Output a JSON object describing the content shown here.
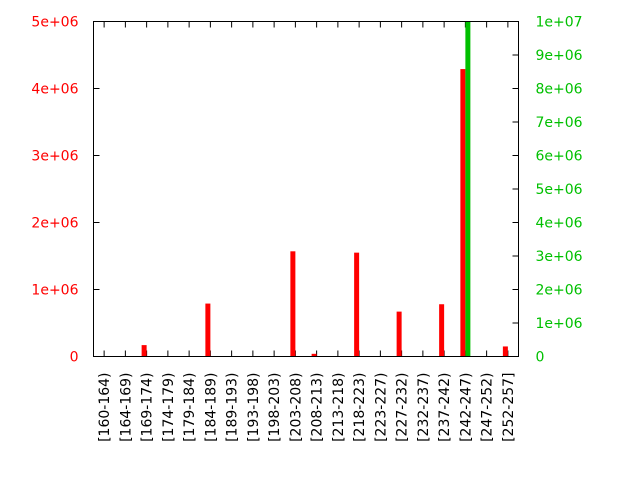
{
  "chart_data": {
    "type": "bar",
    "title": "",
    "xlabel": "",
    "ylabel": "",
    "y2label": "",
    "categories": [
      "[160-164)",
      "[164-169)",
      "[169-174)",
      "[174-179)",
      "[179-184)",
      "[184-189)",
      "[189-193)",
      "[193-198)",
      "[198-203)",
      "[203-208)",
      "[208-213)",
      "[213-218)",
      "[218-223)",
      "[223-227)",
      "[227-232)",
      "[232-237)",
      "[237-242)",
      "[242-247)",
      "[247-252)",
      "[252-257]"
    ],
    "series": [
      {
        "axis": "left",
        "color": "#ff0000",
        "values": [
          0,
          0,
          170000,
          0,
          0,
          790000,
          0,
          0,
          0,
          1570000,
          40000,
          0,
          1550000,
          0,
          670000,
          0,
          780000,
          4290000,
          0,
          150000
        ]
      },
      {
        "axis": "right",
        "color": "#00c000",
        "values": [
          0,
          0,
          0,
          0,
          0,
          0,
          0,
          0,
          0,
          0,
          0,
          0,
          0,
          0,
          0,
          0,
          0,
          10000000,
          0,
          0
        ]
      }
    ],
    "ylim": [
      0,
      5000000
    ],
    "y2lim": [
      0,
      10000000
    ],
    "yticks": [
      "0",
      "1e+06",
      "2e+06",
      "3e+06",
      "4e+06",
      "5e+06"
    ],
    "y2ticks": [
      "0",
      "1e+06",
      "2e+06",
      "3e+06",
      "4e+06",
      "5e+06",
      "6e+06",
      "7e+06",
      "8e+06",
      "9e+06",
      "1e+07"
    ],
    "grid": false,
    "legend": "none"
  }
}
